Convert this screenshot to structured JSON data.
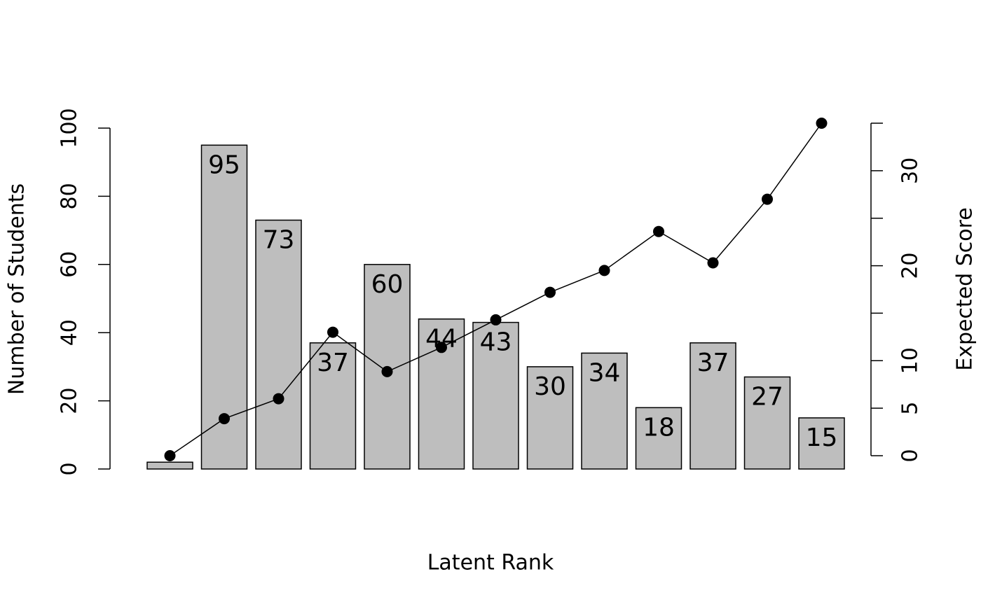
{
  "chart_data": {
    "type": "bar-line",
    "xlabel": "Latent Rank",
    "ylabel": "Number of Students",
    "y2label": "Expected Score",
    "series": [
      {
        "type": "bar",
        "color": "#bebebe",
        "values": [
          2,
          95,
          73,
          37,
          60,
          44,
          43,
          30,
          34,
          18,
          37,
          27,
          15
        ],
        "value_labels": [
          null,
          "95",
          "73",
          "37",
          "60",
          "44",
          "43",
          "30",
          "34",
          "18",
          "37",
          "27",
          "15"
        ]
      },
      {
        "type": "line",
        "axis": "y2",
        "color": "#000000",
        "values": [
          0.0,
          3.9,
          6.0,
          13.0,
          8.85,
          11.4,
          14.3,
          17.2,
          19.5,
          23.6,
          20.3,
          27.0,
          35.0
        ]
      }
    ],
    "ylim": [
      0,
      100
    ],
    "yticks": [
      0,
      20,
      40,
      60,
      80,
      100
    ],
    "y2lim": [
      0,
      35
    ],
    "y2ticks": [
      0,
      5,
      10,
      {
        "value": 15,
        "label": null
      },
      20,
      {
        "value": 25,
        "label": null
      },
      30,
      {
        "value": 35,
        "label": null
      }
    ]
  }
}
